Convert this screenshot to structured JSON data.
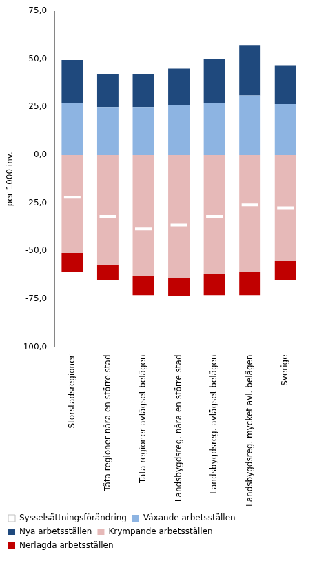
{
  "chart_data": {
    "type": "bar",
    "stacked": true,
    "y_label": "per 1000 inv.",
    "categories": [
      "Storstadsregioner",
      "Täta regioner nära en större stad",
      "Täta regioner avlägset belägen",
      "Landsbygdsreg. nära en större stad",
      "Landsbygdsreg. avlägset belägen",
      "Landsbygdsreg. mycket avl. belägen",
      "Sverige"
    ],
    "series": [
      {
        "name": "Växande arbetsställen",
        "color": "#8db4e2",
        "values": [
          27,
          25,
          25,
          26,
          27,
          31,
          26.5
        ]
      },
      {
        "name": "Nya arbetsställen",
        "color": "#1f497d",
        "values": [
          22.5,
          17,
          17,
          19,
          23,
          26,
          20
        ]
      },
      {
        "name": "Krympande arbetsställen",
        "color": "#e6b9b8",
        "values": [
          -51,
          -57,
          -63,
          -64,
          -62,
          -61,
          -55
        ]
      },
      {
        "name": "Nerlagda arbetsställen",
        "color": "#c00000",
        "values": [
          -10,
          -8,
          -10,
          -9.5,
          -11,
          -12,
          -10
        ]
      },
      {
        "name": "Sysselsättningsförändring",
        "color": "#ffffff",
        "type": "line",
        "marker": "line",
        "values": [
          -22,
          -32,
          -38.5,
          -36.5,
          -32,
          -26,
          -27.5
        ]
      }
    ],
    "ylim": [
      -100,
      75
    ],
    "yticks": [
      {
        "value": -100,
        "label": "-100,0"
      },
      {
        "value": -75,
        "label": "-75,0"
      },
      {
        "value": -50,
        "label": "-50,0"
      },
      {
        "value": -25,
        "label": "-25,0"
      },
      {
        "value": 0,
        "label": "0,0"
      },
      {
        "value": 25,
        "label": "25,0"
      },
      {
        "value": 50,
        "label": "50,0"
      },
      {
        "value": 75,
        "label": "75,0"
      }
    ],
    "grid": false,
    "legend": "bottom"
  }
}
